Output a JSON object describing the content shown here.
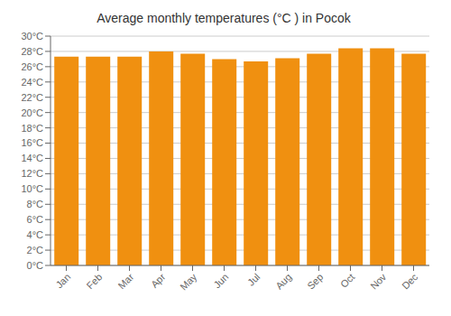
{
  "chart_data": {
    "type": "bar",
    "title": "Average monthly temperatures (°C ) in Pocok",
    "categories": [
      "Jan",
      "Feb",
      "Mar",
      "Apr",
      "May",
      "Jun",
      "Jul",
      "Aug",
      "Sep",
      "Oct",
      "Nov",
      "Dec"
    ],
    "values": [
      27.3,
      27.3,
      27.3,
      28.0,
      27.7,
      27.0,
      26.7,
      27.1,
      27.7,
      28.4,
      28.4,
      27.7
    ],
    "color": "#F09010",
    "ylim": [
      0,
      30
    ],
    "yticks": [
      {
        "value": 0,
        "label": "0°C"
      },
      {
        "value": 2,
        "label": "2°C"
      },
      {
        "value": 4,
        "label": "4°C"
      },
      {
        "value": 6,
        "label": "6°C"
      },
      {
        "value": 8,
        "label": "8°C"
      },
      {
        "value": 10,
        "label": "10°C"
      },
      {
        "value": 12,
        "label": "12°C"
      },
      {
        "value": 14,
        "label": "14°C"
      },
      {
        "value": 16,
        "label": "16°C"
      },
      {
        "value": 18,
        "label": "18°C"
      },
      {
        "value": 20,
        "label": "20°C"
      },
      {
        "value": 22,
        "label": "22°C"
      },
      {
        "value": 24,
        "label": "24°C"
      },
      {
        "value": 26,
        "label": "26°C"
      },
      {
        "value": 28,
        "label": "28°C"
      },
      {
        "value": 30,
        "label": "30°C"
      }
    ],
    "grid": true
  }
}
